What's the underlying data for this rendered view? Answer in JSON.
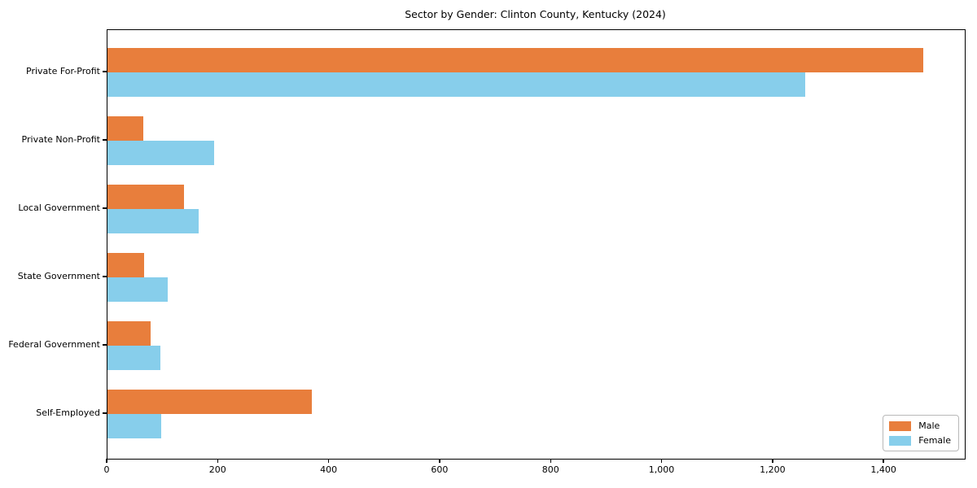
{
  "chart_data": {
    "type": "bar",
    "orientation": "horizontal",
    "title": "Sector by Gender: Clinton County, Kentucky (2024)",
    "categories": [
      "Private For-Profit",
      "Private Non-Profit",
      "Local Government",
      "State Government",
      "Federal Government",
      "Self-Employed"
    ],
    "series": [
      {
        "name": "Male",
        "color": "#e87e3c",
        "values": [
          1470,
          65,
          138,
          66,
          78,
          369
        ]
      },
      {
        "name": "Female",
        "color": "#87ceeb",
        "values": [
          1258,
          192,
          164,
          108,
          95,
          97
        ]
      }
    ],
    "xlim": [
      0,
      1545
    ],
    "x_ticks": [
      0,
      200,
      400,
      600,
      800,
      1000,
      1200,
      1400
    ],
    "x_tick_labels": [
      "0",
      "200",
      "400",
      "600",
      "800",
      "1,000",
      "1,200",
      "1,400"
    ],
    "ylabel": "",
    "xlabel": "",
    "grid": false,
    "legend_position": "lower right",
    "axis_color": "#000000",
    "background_color": "#ffffff"
  }
}
